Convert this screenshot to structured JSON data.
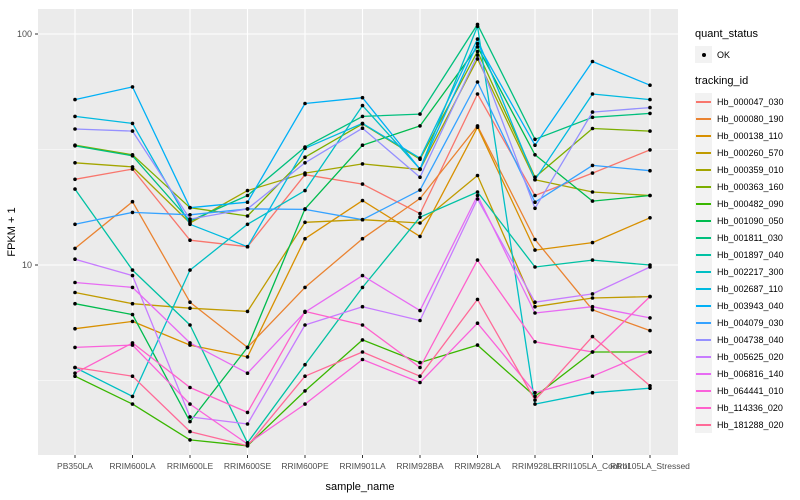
{
  "figure": {
    "y_axis_title": "FPKM + 1",
    "x_axis_title": "sample_name",
    "y_tick_labels": [
      "100",
      "10"
    ],
    "legend": {
      "quant_status_title": "quant_status",
      "quant_status_items": [
        {
          "label": "OK",
          "shape": "point"
        }
      ],
      "tracking_id_title": "tracking_id"
    },
    "colors": {
      "panel_background": "#EBEBEB",
      "gridline": "#FFFFFF",
      "tick_label": "#4D4D4D",
      "tick_mark": "#333333",
      "point": "#000000",
      "legend_key_background": "#F2F2F2"
    }
  },
  "chart_data": {
    "type": "line",
    "title": "",
    "xlabel": "sample_name",
    "ylabel": "FPKM + 1",
    "yscale": "log10",
    "ylim": [
      1.5,
      130
    ],
    "y_major_gridlines": [
      10,
      100
    ],
    "y_minor_gridlines": [
      3.162,
      31.623
    ],
    "grid": "on",
    "legend_position": "right",
    "point_marker": "filled-black-circle",
    "categories": [
      "PB350LA",
      "RRIM600LA",
      "RRIM600LE",
      "RRIM600SE",
      "RRIM600PE",
      "RRIM901LA",
      "RRIM928BA",
      "RRIM928LA",
      "RRIM928LE",
      "RRII105LA_Control",
      "RRII105LA_Stressed"
    ],
    "series": [
      {
        "name": "Hb_000047_030",
        "color": "#F8766D",
        "values": [
          23.5,
          26,
          12.8,
          12.0,
          24.6,
          22.4,
          16.7,
          55,
          20,
          25,
          31.5
        ]
      },
      {
        "name": "Hb_000080_190",
        "color": "#EA8331",
        "values": [
          11.8,
          18.8,
          6.9,
          4.4,
          8.0,
          13,
          19.4,
          40,
          12.9,
          6.4,
          5.2
        ]
      },
      {
        "name": "Hb_000138_110",
        "color": "#D89000",
        "values": [
          5.3,
          5.7,
          4.5,
          4.0,
          13,
          19,
          13.3,
          39.5,
          11.6,
          12.5,
          16
        ]
      },
      {
        "name": "Hb_000260_570",
        "color": "#C09B00",
        "values": [
          7.6,
          6.8,
          6.5,
          6.3,
          15.3,
          15.7,
          15.2,
          24.4,
          6.6,
          7.2,
          7.3
        ]
      },
      {
        "name": "Hb_000359_010",
        "color": "#A3A500",
        "values": [
          27.7,
          26.6,
          15.2,
          21,
          25,
          27.4,
          25.9,
          78,
          23.4,
          20.7,
          20
        ]
      },
      {
        "name": "Hb_000363_160",
        "color": "#7CAE00",
        "values": [
          33,
          30,
          17.7,
          16.3,
          29.3,
          40.8,
          28.7,
          84,
          24,
          39,
          38
        ]
      },
      {
        "name": "Hb_000482_090",
        "color": "#39B600",
        "values": [
          3.3,
          2.5,
          1.75,
          1.65,
          2.85,
          4.74,
          3.78,
          4.5,
          2.7,
          4.2,
          4.2
        ]
      },
      {
        "name": "Hb_001090_050",
        "color": "#00BB4E",
        "values": [
          6.8,
          6.1,
          2.1,
          4.4,
          17.5,
          33,
          40,
          88,
          30,
          18.9,
          20
        ]
      },
      {
        "name": "Hb_001811_030",
        "color": "#00BF7D",
        "values": [
          32.8,
          29.7,
          15.5,
          20,
          32.4,
          44,
          45,
          110,
          35,
          43.6,
          45.3
        ]
      },
      {
        "name": "Hb_001897_040",
        "color": "#00C1A3",
        "values": [
          21.3,
          9.5,
          5.5,
          1.7,
          3.7,
          8,
          16.1,
          20.7,
          9.8,
          10.5,
          10
        ]
      },
      {
        "name": "Hb_002217_300",
        "color": "#00BFC4",
        "values": [
          3.6,
          2.7,
          9.5,
          15,
          21,
          49,
          26,
          108,
          2.5,
          2.8,
          2.93
        ]
      },
      {
        "name": "Hb_002687_110",
        "color": "#00BAE0",
        "values": [
          44,
          41,
          15,
          12,
          32,
          41,
          29,
          95,
          23.4,
          55,
          52
        ]
      },
      {
        "name": "Hb_003943_040",
        "color": "#00B0F6",
        "values": [
          52,
          59,
          17.7,
          18.7,
          50,
          53,
          26,
          91,
          33,
          76,
          60
        ]
      },
      {
        "name": "Hb_004079_030",
        "color": "#35A2FF",
        "values": [
          15,
          16.9,
          16.5,
          17.5,
          17.4,
          15.7,
          21.1,
          62,
          18.7,
          27,
          25.6
        ]
      },
      {
        "name": "Hb_004738_040",
        "color": "#9590FF",
        "values": [
          38.8,
          38,
          15.8,
          17.5,
          27.7,
          39.1,
          24,
          81,
          17.6,
          45.9,
          48
        ]
      },
      {
        "name": "Hb_005625_020",
        "color": "#C77CFF",
        "values": [
          10.6,
          9.0,
          2.2,
          2.05,
          5.5,
          6.6,
          5.75,
          19.3,
          6.9,
          7.5,
          9.8
        ]
      },
      {
        "name": "Hb_006816_140",
        "color": "#E76BF3",
        "values": [
          8.4,
          8.0,
          4.6,
          3.4,
          6.25,
          9.0,
          6.35,
          20,
          6.2,
          6.6,
          5.9
        ]
      },
      {
        "name": "Hb_064441_010",
        "color": "#FA62DB",
        "values": [
          4.4,
          4.5,
          2.5,
          1.68,
          2.5,
          3.9,
          3.1,
          5.6,
          2.8,
          3.3,
          4.2
        ]
      },
      {
        "name": "Hb_114336_020",
        "color": "#FF61CC",
        "values": [
          3.4,
          4.6,
          2.95,
          2.3,
          6.3,
          5.5,
          3.6,
          10.5,
          4.65,
          4.2,
          7.3
        ]
      },
      {
        "name": "Hb_181288_020",
        "color": "#FF6A98",
        "values": [
          3.6,
          3.3,
          1.9,
          1.65,
          3.3,
          4.2,
          3.3,
          7.1,
          2.6,
          4.9,
          3.0
        ]
      }
    ]
  }
}
